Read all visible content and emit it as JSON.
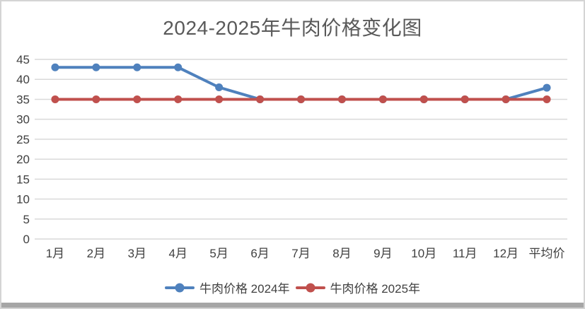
{
  "window": {
    "background": "#ffffff",
    "border_color": "#d4d4d4",
    "bottom_bar_color": "#a6a6a6"
  },
  "chart_data": {
    "type": "line",
    "title": "2024-2025年牛肉价格变化图",
    "title_color": "#595959",
    "categories": [
      "1月",
      "2月",
      "3月",
      "4月",
      "5月",
      "6月",
      "7月",
      "8月",
      "9月",
      "10月",
      "11月",
      "12月",
      "平均价"
    ],
    "series": [
      {
        "name": "牛肉价格 2024年",
        "color": "#4F81BD",
        "values": [
          43,
          43,
          43,
          43,
          38,
          35,
          35,
          35,
          35,
          35,
          35,
          35,
          37.9
        ]
      },
      {
        "name": "牛肉价格 2025年",
        "color": "#C0504D",
        "values": [
          35,
          35,
          35,
          35,
          35,
          35,
          35,
          35,
          35,
          35,
          35,
          35,
          35
        ]
      }
    ],
    "ylim": [
      0,
      45
    ],
    "ytick_step": 5,
    "yticks": [
      0,
      5,
      10,
      15,
      20,
      25,
      30,
      35,
      40,
      45
    ],
    "grid": true,
    "gridline_color": "#d9d9d9",
    "axis_label_color": "#404040",
    "legend_position": "bottom",
    "marker": "circle"
  }
}
